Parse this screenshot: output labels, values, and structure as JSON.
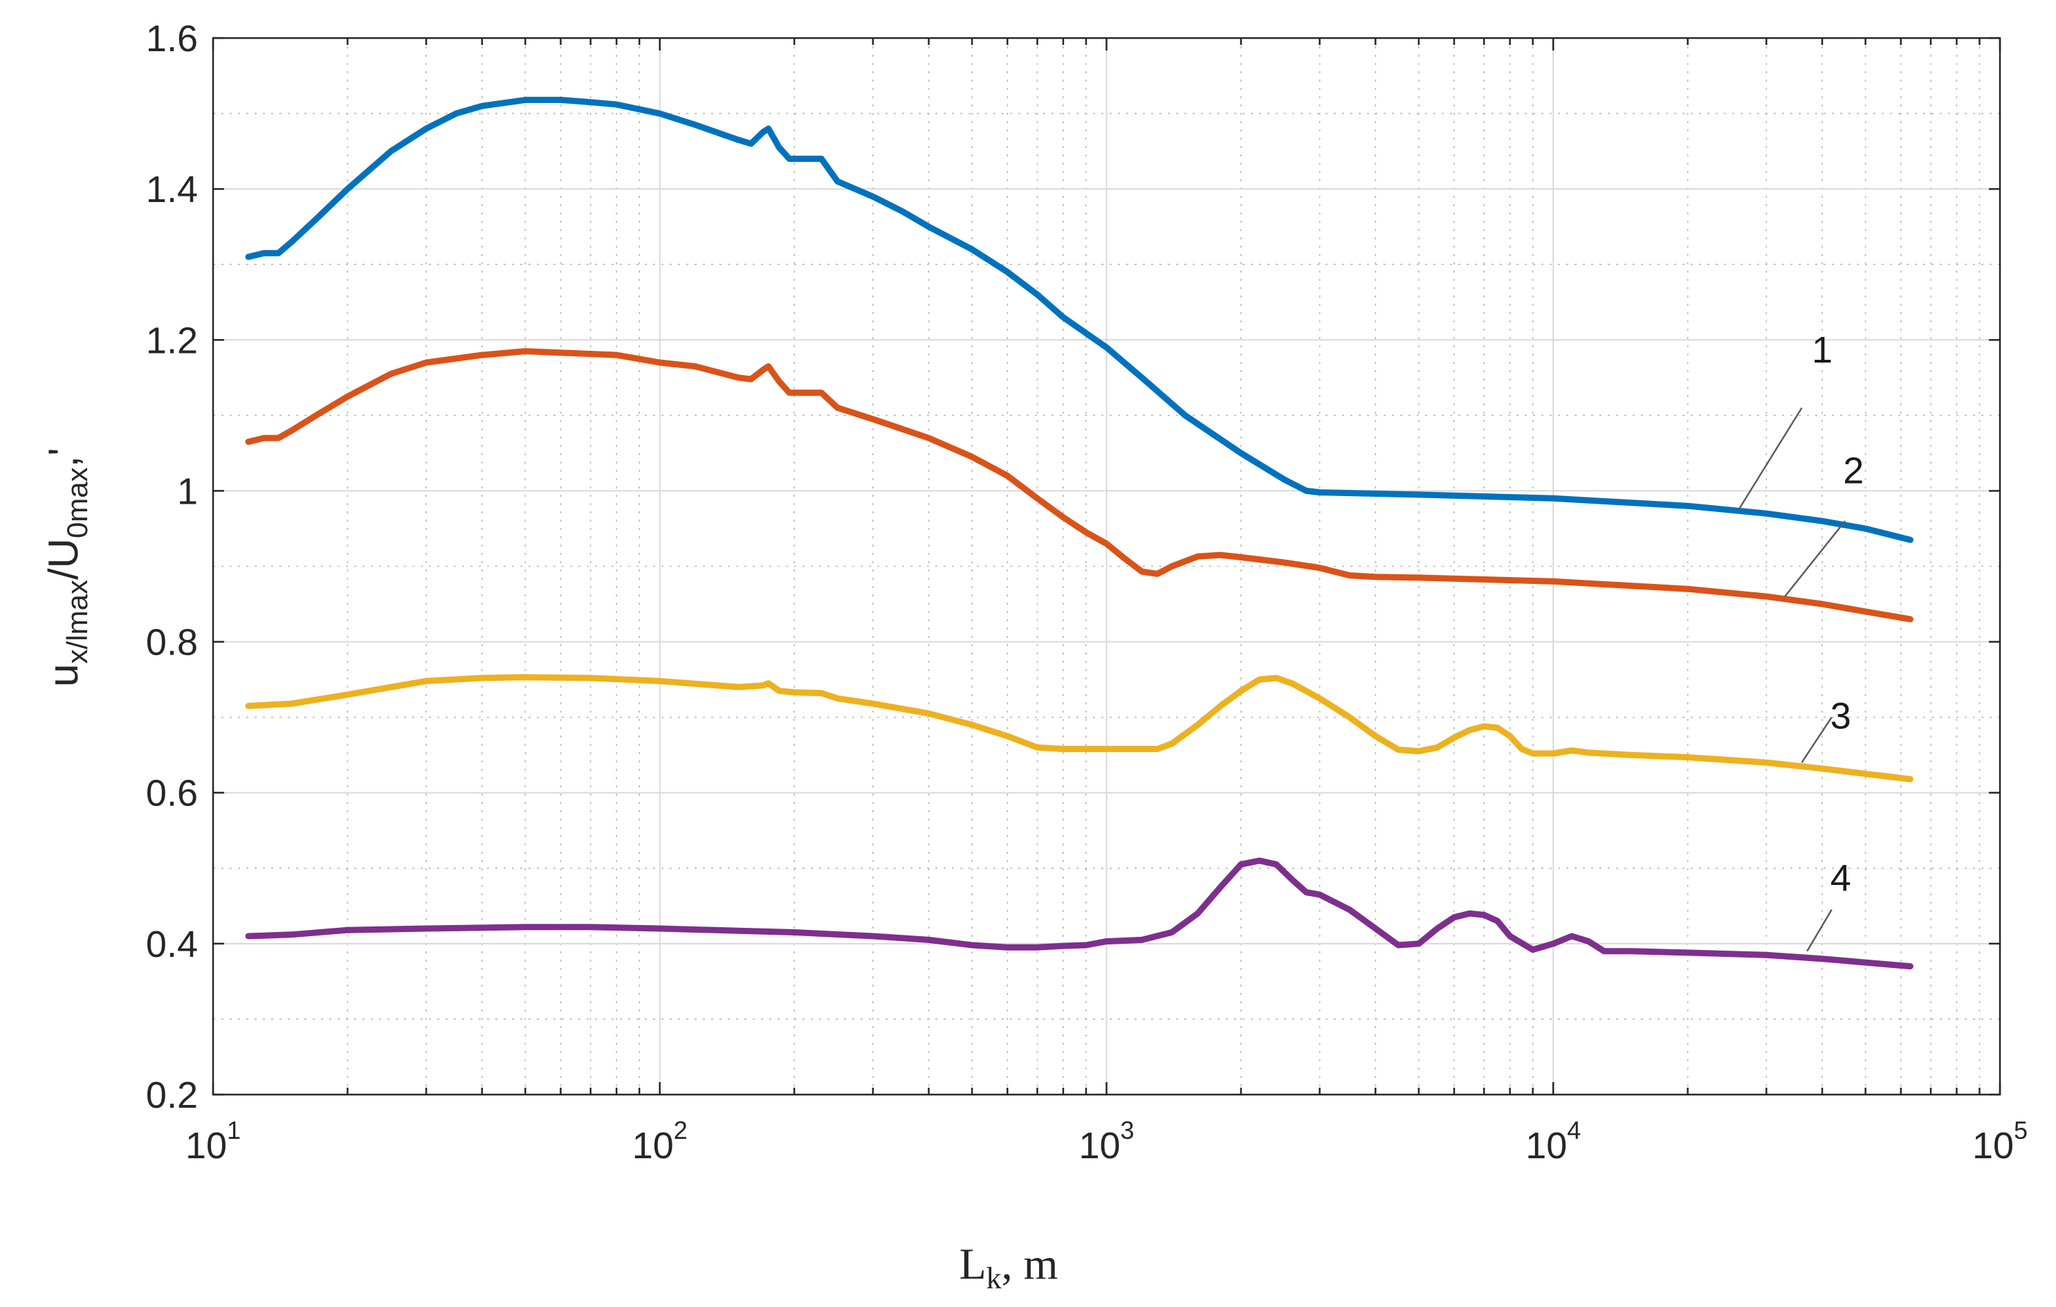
{
  "chart_data": {
    "type": "line",
    "title": "",
    "xscale": "log",
    "xlim": [
      10,
      100000
    ],
    "ylim": [
      0.2,
      1.6
    ],
    "grid": "on",
    "xticks": [
      {
        "base": "10",
        "exp": "1",
        "value": 10
      },
      {
        "base": "10",
        "exp": "2",
        "value": 100
      },
      {
        "base": "10",
        "exp": "3",
        "value": 1000
      },
      {
        "base": "10",
        "exp": "4",
        "value": 10000
      },
      {
        "base": "10",
        "exp": "5",
        "value": 100000
      }
    ],
    "yticks": [
      {
        "label": "0.2",
        "value": 0.2
      },
      {
        "label": "0.4",
        "value": 0.4
      },
      {
        "label": "0.6",
        "value": 0.6
      },
      {
        "label": "0.8",
        "value": 0.8
      },
      {
        "label": "1",
        "value": 1.0
      },
      {
        "label": "1.2",
        "value": 1.2
      },
      {
        "label": "1.4",
        "value": 1.4
      },
      {
        "label": "1.6",
        "value": 1.6
      }
    ],
    "xlabel": {
      "main": "L",
      "sub": "k",
      "rest": ", m"
    },
    "ylabel": {
      "p1": "u",
      "s1": "x/lmax",
      "p2": "/U",
      "s2": "0max",
      "p3": ",'"
    },
    "series": [
      {
        "name": "1",
        "color": "#0072BD",
        "label_at": {
          "x": 40000,
          "y": 1.17
        },
        "leader": {
          "x1": 26000,
          "y1": 0.975,
          "x2": 36000,
          "y2": 1.11
        },
        "points": [
          [
            12,
            1.31
          ],
          [
            13,
            1.315
          ],
          [
            14,
            1.315
          ],
          [
            15,
            1.33
          ],
          [
            17,
            1.36
          ],
          [
            20,
            1.4
          ],
          [
            25,
            1.45
          ],
          [
            30,
            1.48
          ],
          [
            35,
            1.5
          ],
          [
            40,
            1.51
          ],
          [
            50,
            1.518
          ],
          [
            60,
            1.518
          ],
          [
            70,
            1.515
          ],
          [
            80,
            1.512
          ],
          [
            100,
            1.5
          ],
          [
            120,
            1.485
          ],
          [
            150,
            1.465
          ],
          [
            160,
            1.46
          ],
          [
            170,
            1.475
          ],
          [
            175,
            1.48
          ],
          [
            185,
            1.455
          ],
          [
            195,
            1.44
          ],
          [
            210,
            1.44
          ],
          [
            230,
            1.44
          ],
          [
            250,
            1.41
          ],
          [
            300,
            1.39
          ],
          [
            350,
            1.37
          ],
          [
            400,
            1.35
          ],
          [
            500,
            1.32
          ],
          [
            600,
            1.29
          ],
          [
            700,
            1.26
          ],
          [
            800,
            1.23
          ],
          [
            1000,
            1.19
          ],
          [
            1200,
            1.15
          ],
          [
            1500,
            1.1
          ],
          [
            2000,
            1.05
          ],
          [
            2500,
            1.015
          ],
          [
            2800,
            1.0
          ],
          [
            3000,
            0.998
          ],
          [
            5000,
            0.995
          ],
          [
            10000,
            0.99
          ],
          [
            20000,
            0.98
          ],
          [
            30000,
            0.97
          ],
          [
            40000,
            0.96
          ],
          [
            50000,
            0.95
          ],
          [
            63000,
            0.935
          ]
        ]
      },
      {
        "name": "2",
        "color": "#D95319",
        "label_at": {
          "x": 47000,
          "y": 1.01
        },
        "leader": {
          "x1": 33000,
          "y1": 0.86,
          "x2": 45000,
          "y2": 0.96
        },
        "points": [
          [
            12,
            1.065
          ],
          [
            13,
            1.07
          ],
          [
            14,
            1.07
          ],
          [
            15,
            1.08
          ],
          [
            17,
            1.1
          ],
          [
            20,
            1.125
          ],
          [
            25,
            1.155
          ],
          [
            30,
            1.17
          ],
          [
            40,
            1.18
          ],
          [
            50,
            1.185
          ],
          [
            60,
            1.183
          ],
          [
            80,
            1.18
          ],
          [
            100,
            1.17
          ],
          [
            120,
            1.165
          ],
          [
            150,
            1.15
          ],
          [
            160,
            1.148
          ],
          [
            170,
            1.16
          ],
          [
            175,
            1.165
          ],
          [
            185,
            1.145
          ],
          [
            195,
            1.13
          ],
          [
            210,
            1.13
          ],
          [
            230,
            1.13
          ],
          [
            250,
            1.11
          ],
          [
            300,
            1.095
          ],
          [
            400,
            1.07
          ],
          [
            500,
            1.045
          ],
          [
            600,
            1.02
          ],
          [
            700,
            0.99
          ],
          [
            800,
            0.965
          ],
          [
            900,
            0.945
          ],
          [
            1000,
            0.93
          ],
          [
            1100,
            0.91
          ],
          [
            1200,
            0.893
          ],
          [
            1300,
            0.89
          ],
          [
            1400,
            0.9
          ],
          [
            1600,
            0.913
          ],
          [
            1800,
            0.915
          ],
          [
            2000,
            0.912
          ],
          [
            2500,
            0.905
          ],
          [
            3000,
            0.898
          ],
          [
            3500,
            0.888
          ],
          [
            4000,
            0.886
          ],
          [
            5000,
            0.885
          ],
          [
            10000,
            0.88
          ],
          [
            20000,
            0.87
          ],
          [
            30000,
            0.86
          ],
          [
            40000,
            0.85
          ],
          [
            50000,
            0.84
          ],
          [
            63000,
            0.83
          ]
        ]
      },
      {
        "name": "3",
        "color": "#EDB120",
        "label_at": {
          "x": 44000,
          "y": 0.685
        },
        "leader": {
          "x1": 36000,
          "y1": 0.64,
          "x2": 42000,
          "y2": 0.7
        },
        "points": [
          [
            12,
            0.715
          ],
          [
            15,
            0.718
          ],
          [
            20,
            0.73
          ],
          [
            30,
            0.748
          ],
          [
            40,
            0.752
          ],
          [
            50,
            0.753
          ],
          [
            70,
            0.752
          ],
          [
            100,
            0.748
          ],
          [
            150,
            0.74
          ],
          [
            170,
            0.742
          ],
          [
            175,
            0.745
          ],
          [
            185,
            0.735
          ],
          [
            200,
            0.733
          ],
          [
            230,
            0.732
          ],
          [
            250,
            0.725
          ],
          [
            300,
            0.718
          ],
          [
            400,
            0.705
          ],
          [
            500,
            0.69
          ],
          [
            600,
            0.675
          ],
          [
            700,
            0.66
          ],
          [
            800,
            0.658
          ],
          [
            1000,
            0.658
          ],
          [
            1200,
            0.658
          ],
          [
            1300,
            0.658
          ],
          [
            1400,
            0.665
          ],
          [
            1600,
            0.69
          ],
          [
            1800,
            0.715
          ],
          [
            2000,
            0.735
          ],
          [
            2200,
            0.75
          ],
          [
            2400,
            0.752
          ],
          [
            2600,
            0.745
          ],
          [
            3000,
            0.725
          ],
          [
            3500,
            0.7
          ],
          [
            4000,
            0.675
          ],
          [
            4500,
            0.657
          ],
          [
            5000,
            0.655
          ],
          [
            5500,
            0.66
          ],
          [
            6000,
            0.673
          ],
          [
            6500,
            0.683
          ],
          [
            7000,
            0.688
          ],
          [
            7500,
            0.686
          ],
          [
            8000,
            0.675
          ],
          [
            8500,
            0.658
          ],
          [
            9000,
            0.652
          ],
          [
            10000,
            0.652
          ],
          [
            11000,
            0.656
          ],
          [
            12000,
            0.653
          ],
          [
            15000,
            0.65
          ],
          [
            20000,
            0.647
          ],
          [
            30000,
            0.64
          ],
          [
            40000,
            0.632
          ],
          [
            50000,
            0.625
          ],
          [
            63000,
            0.618
          ]
        ]
      },
      {
        "name": "4",
        "color": "#7E2F8E",
        "label_at": {
          "x": 44000,
          "y": 0.47
        },
        "leader": {
          "x1": 37000,
          "y1": 0.39,
          "x2": 42000,
          "y2": 0.445
        },
        "points": [
          [
            12,
            0.41
          ],
          [
            15,
            0.412
          ],
          [
            20,
            0.418
          ],
          [
            30,
            0.42
          ],
          [
            50,
            0.422
          ],
          [
            70,
            0.422
          ],
          [
            100,
            0.42
          ],
          [
            150,
            0.417
          ],
          [
            200,
            0.415
          ],
          [
            300,
            0.41
          ],
          [
            400,
            0.405
          ],
          [
            500,
            0.398
          ],
          [
            600,
            0.395
          ],
          [
            700,
            0.395
          ],
          [
            800,
            0.397
          ],
          [
            900,
            0.398
          ],
          [
            1000,
            0.403
          ],
          [
            1200,
            0.405
          ],
          [
            1400,
            0.415
          ],
          [
            1600,
            0.44
          ],
          [
            1800,
            0.475
          ],
          [
            2000,
            0.505
          ],
          [
            2200,
            0.51
          ],
          [
            2400,
            0.505
          ],
          [
            2600,
            0.485
          ],
          [
            2800,
            0.468
          ],
          [
            3000,
            0.465
          ],
          [
            3500,
            0.445
          ],
          [
            4000,
            0.42
          ],
          [
            4500,
            0.398
          ],
          [
            5000,
            0.4
          ],
          [
            5500,
            0.42
          ],
          [
            6000,
            0.435
          ],
          [
            6500,
            0.44
          ],
          [
            7000,
            0.438
          ],
          [
            7500,
            0.43
          ],
          [
            8000,
            0.41
          ],
          [
            9000,
            0.392
          ],
          [
            10000,
            0.4
          ],
          [
            11000,
            0.41
          ],
          [
            12000,
            0.403
          ],
          [
            13000,
            0.39
          ],
          [
            15000,
            0.39
          ],
          [
            20000,
            0.388
          ],
          [
            30000,
            0.385
          ],
          [
            40000,
            0.38
          ],
          [
            50000,
            0.375
          ],
          [
            63000,
            0.37
          ]
        ]
      }
    ]
  }
}
